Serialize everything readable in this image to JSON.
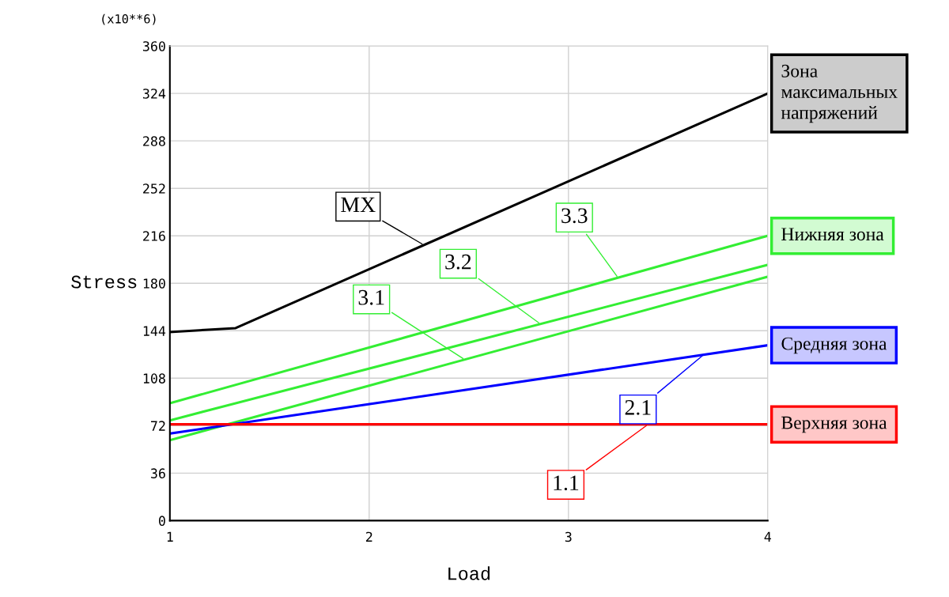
{
  "chart_data": {
    "type": "line",
    "xlabel": "Load",
    "ylabel": "Stress",
    "x": [
      1,
      4
    ],
    "series": [
      {
        "color": "#000000",
        "x": [
          1,
          1.33,
          4
        ],
        "values": [
          143,
          146,
          324
        ]
      },
      {
        "color": "#33ee33",
        "values": [
          89,
          216
        ]
      },
      {
        "color": "#33ee33",
        "values": [
          76,
          194
        ]
      },
      {
        "color": "#33ee33",
        "values": [
          61,
          185
        ]
      },
      {
        "color": "#0000ff",
        "values": [
          66,
          133
        ]
      },
      {
        "color": "#ff0000",
        "values": [
          73,
          73
        ]
      }
    ],
    "xlim": [
      1,
      4
    ],
    "xticks": [
      1,
      2,
      3,
      4
    ],
    "ylim": [
      0,
      360
    ],
    "yticks": [
      0,
      36,
      72,
      108,
      144,
      180,
      216,
      252,
      288,
      324,
      360
    ],
    "grid": true,
    "marker": "none",
    "line_style": "solid",
    "annotations": [
      "(x10**6)",
      {
        "text": "MX",
        "x": 2.275,
        "y": 209
      },
      {
        "text": "3.3",
        "x": 3.25,
        "y": 184
      },
      {
        "text": "3.2",
        "x": 2.86,
        "y": 149
      },
      {
        "text": "3.1",
        "x": 2.48,
        "y": 122
      },
      {
        "text": "2.1",
        "x": 3.68,
        "y": 126
      },
      {
        "text": "1.1",
        "x": 3.4,
        "y": 73
      },
      {
        "text": "Зона\nмаксимальных\nнапряжений",
        "x": 4,
        "y": 324
      },
      {
        "text": "Нижняя зона",
        "x": 4,
        "y": 216
      },
      {
        "text": "Средняя зона",
        "x": 4,
        "y": 133
      },
      {
        "text": "Верхняя зона",
        "x": 4,
        "y": 73
      }
    ]
  }
}
